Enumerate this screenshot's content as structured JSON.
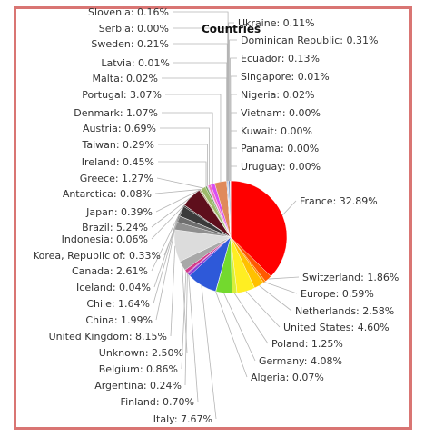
{
  "chart_data": {
    "type": "pie",
    "title": "Countries",
    "slices": [
      {
        "label": "France",
        "text": "France: 32.89%",
        "value": 32.89,
        "color": "#ff0000"
      },
      {
        "label": "Switzerland",
        "text": "Switzerland: 1.86%",
        "value": 1.86,
        "color": "#ff5a00"
      },
      {
        "label": "Europe",
        "text": "Europe: 0.59%",
        "value": 0.59,
        "color": "#ff8c00"
      },
      {
        "label": "Netherlands",
        "text": "Netherlands: 2.58%",
        "value": 2.58,
        "color": "#ffc000"
      },
      {
        "label": "United States",
        "text": "United States: 4.60%",
        "value": 4.6,
        "color": "#ffee22"
      },
      {
        "label": "Poland",
        "text": "Poland: 1.25%",
        "value": 1.25,
        "color": "#d8ef3a"
      },
      {
        "label": "Germany",
        "text": "Germany: 4.08%",
        "value": 4.08,
        "color": "#73d92e"
      },
      {
        "label": "Algeria",
        "text": "Algeria: 0.07%",
        "value": 0.07,
        "color": "#2fb82f"
      },
      {
        "label": "Italy",
        "text": "Italy: 7.67%",
        "value": 7.67,
        "color": "#2e59d9"
      },
      {
        "label": "Finland",
        "text": "Finland: 0.70%",
        "value": 0.7,
        "color": "#8a3ad6"
      },
      {
        "label": "Argentina",
        "text": "Argentina: 0.24%",
        "value": 0.24,
        "color": "#b03ab8"
      },
      {
        "label": "Belgium",
        "text": "Belgium: 0.86%",
        "value": 0.86,
        "color": "#d43a8a"
      },
      {
        "label": "Unknown",
        "text": "Unknown: 2.50%",
        "value": 2.5,
        "color": "#a8a8a8"
      },
      {
        "label": "United Kingdom",
        "text": "United Kingdom: 8.15%",
        "value": 8.15,
        "color": "#dcdcdc"
      },
      {
        "label": "China",
        "text": "China: 1.99%",
        "value": 1.99,
        "color": "#8f8f8f"
      },
      {
        "label": "Chile",
        "text": "Chile: 1.64%",
        "value": 1.64,
        "color": "#6e6e6e"
      },
      {
        "label": "Iceland",
        "text": "Iceland: 0.04%",
        "value": 0.04,
        "color": "#555555"
      },
      {
        "label": "Canada",
        "text": "Canada: 2.61%",
        "value": 2.61,
        "color": "#3a3a3a"
      },
      {
        "label": "Korea, Republic of",
        "text": "Korea, Republic of: 0.33%",
        "value": 0.33,
        "color": "#262626"
      },
      {
        "label": "Indonesia",
        "text": "Indonesia: 0.06%",
        "value": 0.06,
        "color": "#4a0a10"
      },
      {
        "label": "Brazil",
        "text": "Brazil: 5.24%",
        "value": 5.24,
        "color": "#5e0f1c"
      },
      {
        "label": "Japan",
        "text": "Japan: 0.39%",
        "value": 0.39,
        "color": "#b5a87a"
      },
      {
        "label": "Antarctica",
        "text": "Antarctica: 0.08%",
        "value": 0.08,
        "color": "#cfc59a"
      },
      {
        "label": "Greece",
        "text": "Greece: 1.27%",
        "value": 1.27,
        "color": "#9dbb6a"
      },
      {
        "label": "Ireland",
        "text": "Ireland: 0.45%",
        "value": 0.45,
        "color": "#6fa05a"
      },
      {
        "label": "Taiwan",
        "text": "Taiwan: 0.29%",
        "value": 0.29,
        "color": "#e0a8f0"
      },
      {
        "label": "Austria",
        "text": "Austria: 0.69%",
        "value": 0.69,
        "color": "#f070c0"
      },
      {
        "label": "Denmark",
        "text": "Denmark: 1.07%",
        "value": 1.07,
        "color": "#d94ff2"
      },
      {
        "label": "Portugal",
        "text": "Portugal: 3.07%",
        "value": 3.07,
        "color": "#e08a5a"
      },
      {
        "label": "Malta",
        "text": "Malta: 0.02%",
        "value": 0.02,
        "color": "#c4b08a"
      },
      {
        "label": "Latvia",
        "text": "Latvia: 0.01%",
        "value": 0.01,
        "color": "#b0b0b0"
      },
      {
        "label": "Sweden",
        "text": "Sweden: 0.21%",
        "value": 0.21,
        "color": "#6a8fd0"
      },
      {
        "label": "Serbia",
        "text": "Serbia: 0.00%",
        "value": 0.0,
        "color": "#888888"
      },
      {
        "label": "Slovenia",
        "text": "Slovenia: 0.16%",
        "value": 0.16,
        "color": "#5f7fb8"
      },
      {
        "label": "Ukraine",
        "text": "Ukraine: 0.11%",
        "value": 0.11,
        "color": "#7a9a6a"
      },
      {
        "label": "Dominican Republic",
        "text": "Dominican Republic: 0.31%",
        "value": 0.31,
        "color": "#4a6aa8"
      },
      {
        "label": "Ecuador",
        "text": "Ecuador: 0.13%",
        "value": 0.13,
        "color": "#8fa8c8"
      },
      {
        "label": "Singapore",
        "text": "Singapore: 0.01%",
        "value": 0.01,
        "color": "#a0a0a0"
      },
      {
        "label": "Nigeria",
        "text": "Nigeria: 0.02%",
        "value": 0.02,
        "color": "#909090"
      },
      {
        "label": "Vietnam",
        "text": "Vietnam: 0.00%",
        "value": 0.0,
        "color": "#999999"
      },
      {
        "label": "Kuwait",
        "text": "Kuwait: 0.00%",
        "value": 0.0,
        "color": "#aaaaaa"
      },
      {
        "label": "Panama",
        "text": "Panama: 0.00%",
        "value": 0.0,
        "color": "#bbbbbb"
      },
      {
        "label": "Uruguay",
        "text": "Uruguay: 0.00%",
        "value": 0.0,
        "color": "#cccccc"
      }
    ]
  }
}
